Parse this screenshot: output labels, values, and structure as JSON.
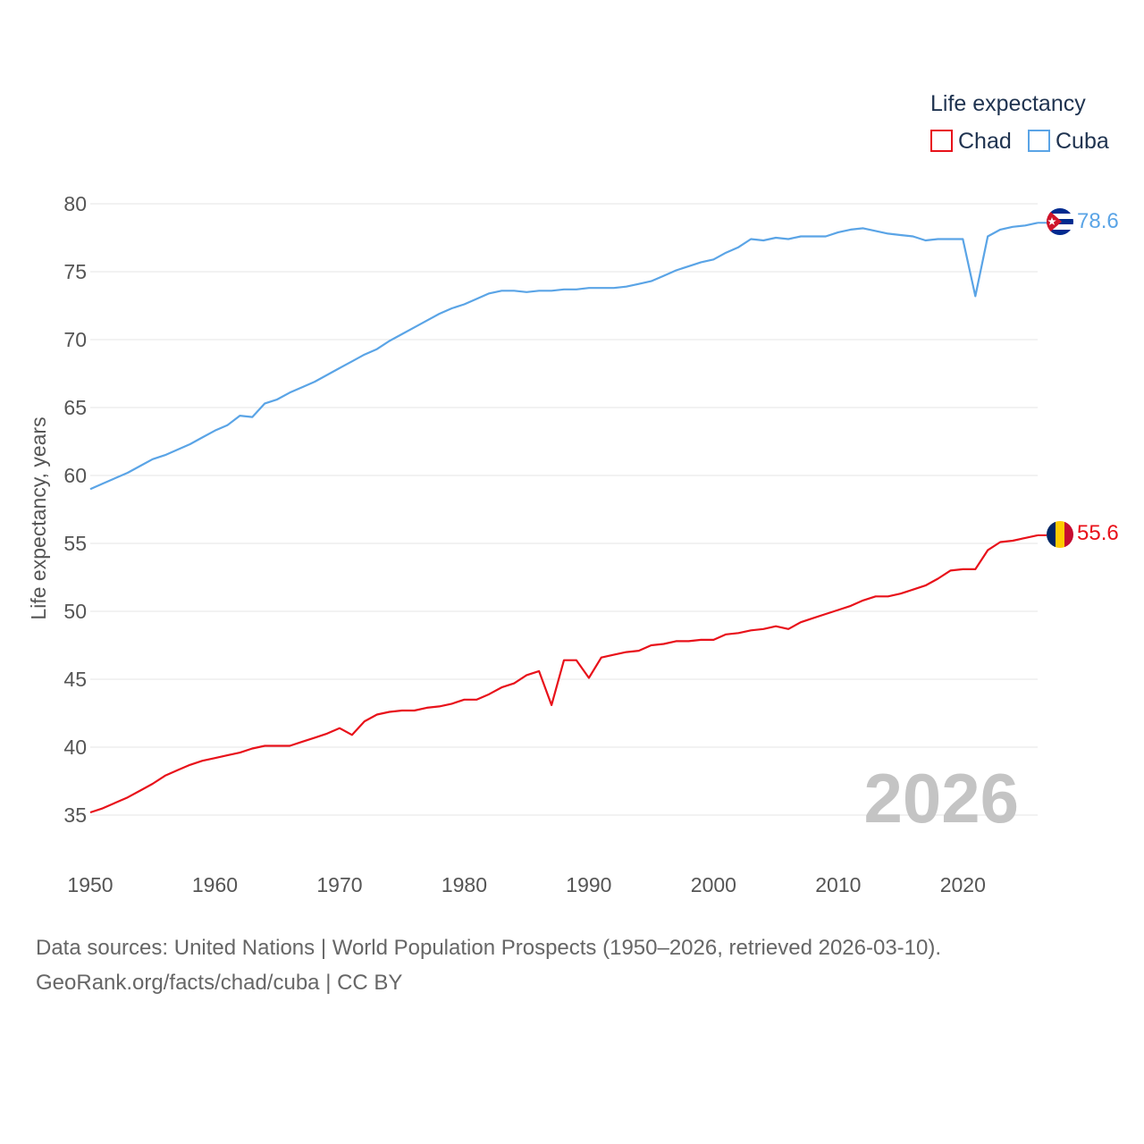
{
  "chart_data": {
    "type": "line",
    "title": "",
    "xlabel": "",
    "ylabel": "Life expectancy, years",
    "xlim": [
      1950,
      2026
    ],
    "ylim": [
      32,
      82
    ],
    "x_ticks": [
      1950,
      1960,
      1970,
      1980,
      1990,
      2000,
      2010,
      2020
    ],
    "y_ticks": [
      35,
      40,
      45,
      50,
      55,
      60,
      65,
      70,
      75,
      80
    ],
    "grid": true,
    "legend": {
      "title": "Life expectancy",
      "placement": "top-right"
    },
    "watermark_year": "2026",
    "x": [
      1950,
      1951,
      1952,
      1953,
      1954,
      1955,
      1956,
      1957,
      1958,
      1959,
      1960,
      1961,
      1962,
      1963,
      1964,
      1965,
      1966,
      1967,
      1968,
      1969,
      1970,
      1971,
      1972,
      1973,
      1974,
      1975,
      1976,
      1977,
      1978,
      1979,
      1980,
      1981,
      1982,
      1983,
      1984,
      1985,
      1986,
      1987,
      1988,
      1989,
      1990,
      1991,
      1992,
      1993,
      1994,
      1995,
      1996,
      1997,
      1998,
      1999,
      2000,
      2001,
      2002,
      2003,
      2004,
      2005,
      2006,
      2007,
      2008,
      2009,
      2010,
      2011,
      2012,
      2013,
      2014,
      2015,
      2016,
      2017,
      2018,
      2019,
      2020,
      2021,
      2022,
      2023,
      2024,
      2025,
      2026
    ],
    "series": [
      {
        "name": "Chad",
        "color": "#e8111a",
        "end_label": "55.6",
        "flag": "chad-flag",
        "values": [
          35.2,
          35.5,
          35.9,
          36.3,
          36.8,
          37.3,
          37.9,
          38.3,
          38.7,
          39.0,
          39.2,
          39.4,
          39.6,
          39.9,
          40.1,
          40.1,
          40.1,
          40.4,
          40.7,
          41.0,
          41.4,
          40.9,
          41.9,
          42.4,
          42.6,
          42.7,
          42.7,
          42.9,
          43.0,
          43.2,
          43.5,
          43.5,
          43.9,
          44.4,
          44.7,
          45.3,
          45.6,
          43.1,
          46.4,
          46.4,
          45.1,
          46.6,
          46.8,
          47.0,
          47.1,
          47.5,
          47.6,
          47.8,
          47.8,
          47.9,
          47.9,
          48.3,
          48.4,
          48.6,
          48.7,
          48.9,
          48.7,
          49.2,
          49.5,
          49.8,
          50.1,
          50.4,
          50.8,
          51.1,
          51.1,
          51.3,
          51.6,
          51.9,
          52.4,
          53.0,
          53.1,
          53.1,
          54.5,
          55.1,
          55.2,
          55.4,
          55.6
        ]
      },
      {
        "name": "Cuba",
        "color": "#5aa4e6",
        "end_label": "78.6",
        "flag": "cuba-flag",
        "values": [
          59.0,
          59.4,
          59.8,
          60.2,
          60.7,
          61.2,
          61.5,
          61.9,
          62.3,
          62.8,
          63.3,
          63.7,
          64.4,
          64.3,
          65.3,
          65.6,
          66.1,
          66.5,
          66.9,
          67.4,
          67.9,
          68.4,
          68.9,
          69.3,
          69.9,
          70.4,
          70.9,
          71.4,
          71.9,
          72.3,
          72.6,
          73.0,
          73.4,
          73.6,
          73.6,
          73.5,
          73.6,
          73.6,
          73.7,
          73.7,
          73.8,
          73.8,
          73.8,
          73.9,
          74.1,
          74.3,
          74.7,
          75.1,
          75.4,
          75.7,
          75.9,
          76.4,
          76.8,
          77.4,
          77.3,
          77.5,
          77.4,
          77.6,
          77.6,
          77.6,
          77.9,
          78.1,
          78.2,
          78.0,
          77.8,
          77.7,
          77.6,
          77.3,
          77.4,
          77.4,
          77.4,
          73.2,
          77.6,
          78.1,
          78.3,
          78.4,
          78.6
        ]
      }
    ]
  },
  "source": {
    "line1": "Data sources: United Nations | World Population Prospects (1950–2026, retrieved 2026-03-10).",
    "line2": "GeoRank.org/facts/chad/cuba | CC BY"
  }
}
